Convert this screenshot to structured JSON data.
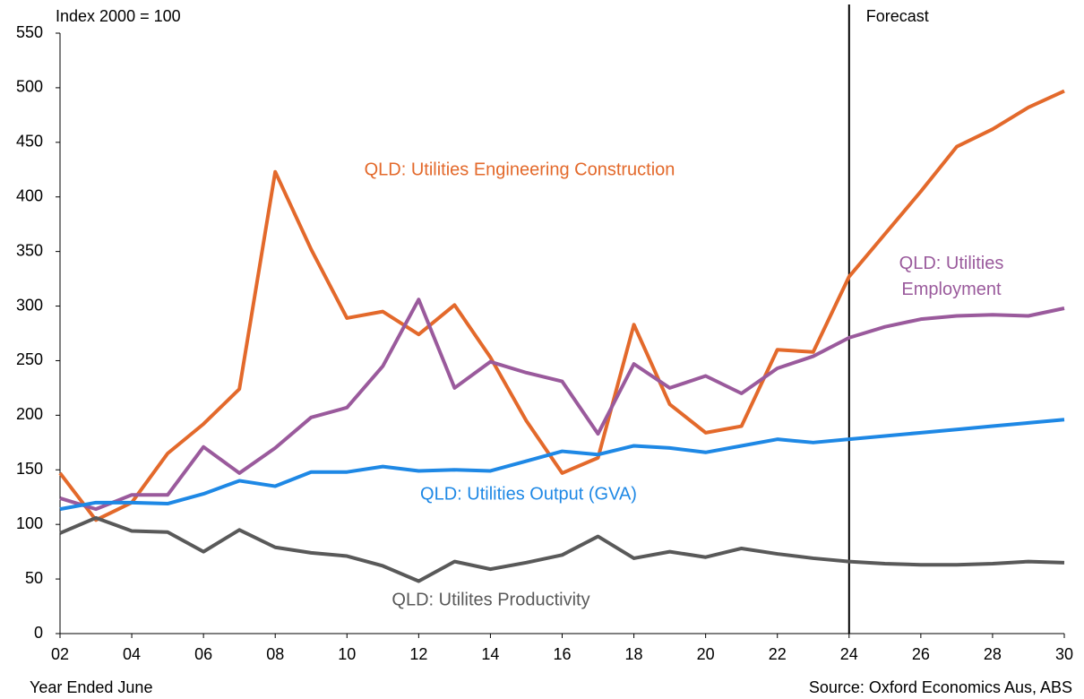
{
  "chart_data": {
    "type": "line",
    "y_label": "Index 2000 = 100",
    "x_label": "Year Ended June",
    "source": "Source: Oxford Economics Aus, ABS",
    "forecast": {
      "label": "Forecast",
      "category": "24"
    },
    "categories": [
      "02",
      null,
      "04",
      null,
      "06",
      null,
      "08",
      null,
      "10",
      null,
      "12",
      null,
      "14",
      null,
      "16",
      null,
      "18",
      null,
      "20",
      null,
      "22",
      null,
      "24",
      null,
      "26",
      null,
      "28",
      null,
      "30"
    ],
    "series": [
      {
        "name": "QLD: Utilities Engineering Construction",
        "color": "#e3692b",
        "values": [
          147,
          104,
          120,
          165,
          192,
          224,
          423,
          352,
          289,
          295,
          274,
          301,
          253,
          195,
          147,
          161,
          283,
          210,
          184,
          190,
          260,
          258,
          327,
          366,
          405,
          446,
          462,
          482,
          497
        ]
      },
      {
        "name": "QLD: Utilities Employment",
        "color": "#9a5a9c",
        "values": [
          124,
          114,
          127,
          127,
          171,
          147,
          170,
          198,
          207,
          245,
          306,
          225,
          249,
          239,
          231,
          183,
          247,
          225,
          236,
          220,
          243,
          254,
          271,
          281,
          288,
          291,
          292,
          291,
          298
        ]
      },
      {
        "name": "QLD: Utilities Output (GVA)",
        "color": "#1e88e5",
        "values": [
          114,
          120,
          120,
          119,
          128,
          140,
          135,
          148,
          148,
          153,
          149,
          150,
          149,
          158,
          167,
          164,
          172,
          170,
          166,
          172,
          178,
          175,
          178,
          181,
          184,
          187,
          190,
          193,
          196
        ]
      },
      {
        "name": "QLD: Utilites Productivity",
        "color": "#595959",
        "values": [
          92,
          106,
          94,
          93,
          75,
          95,
          79,
          74,
          71,
          62,
          48,
          66,
          59,
          65,
          72,
          89,
          69,
          75,
          70,
          78,
          73,
          69,
          66,
          64,
          63,
          63,
          64,
          66,
          65
        ]
      }
    ],
    "ylim": [
      0,
      550
    ],
    "yticks": [
      0,
      50,
      100,
      150,
      200,
      250,
      300,
      350,
      400,
      450,
      500,
      550
    ]
  }
}
